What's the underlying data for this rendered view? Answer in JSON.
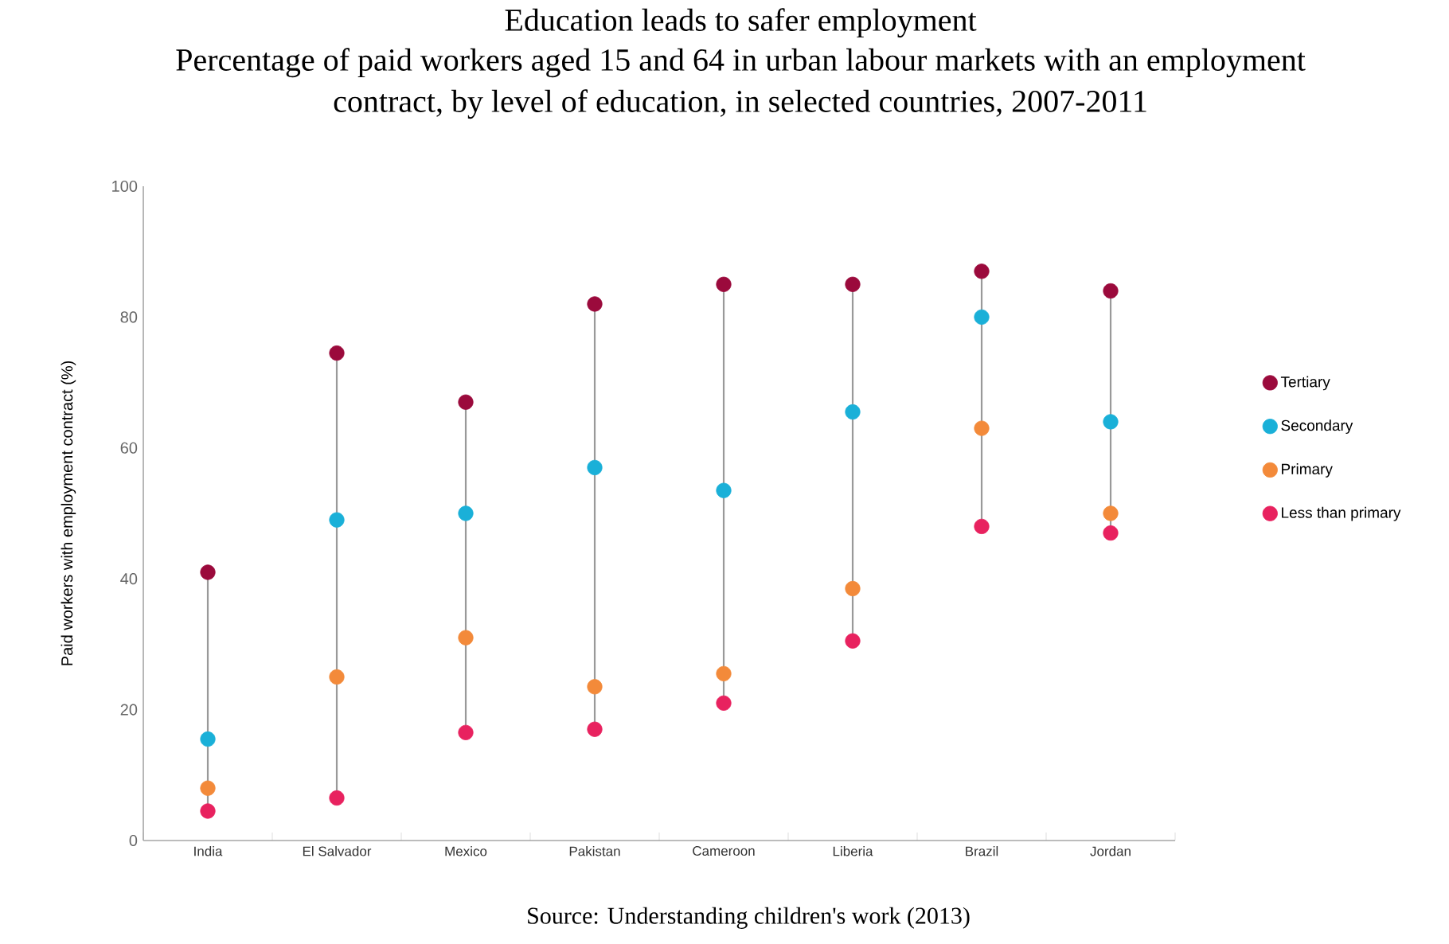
{
  "chart_data": {
    "type": "scatter",
    "title": "Education leads to safer employment",
    "subtitle": "Percentage of paid workers aged 15 and 64 in urban labour markets with an employment contract, by level of education, in selected countries, 2007-2011",
    "ylabel": "Paid workers with employment contract (%)",
    "annotations": [
      "Source: Understanding children's work (2013)"
    ],
    "categories": [
      "India",
      "El Salvador",
      "Mexico",
      "Pakistan",
      "Cameroon",
      "Liberia",
      "Brazil",
      "Jordan"
    ],
    "series": [
      {
        "name": "Tertiary",
        "color": "#9b0a3c",
        "values": [
          41,
          74.5,
          67,
          82,
          85,
          85,
          87,
          84
        ]
      },
      {
        "name": "Secondary",
        "color": "#1ab0d8",
        "values": [
          15.5,
          49,
          50,
          57,
          53.5,
          65.5,
          80,
          64
        ]
      },
      {
        "name": "Primary",
        "color": "#f38a3a",
        "values": [
          8,
          25,
          31,
          23.5,
          25.5,
          38.5,
          63,
          50
        ]
      },
      {
        "name": "Less than primary",
        "color": "#e8225f",
        "values": [
          4.5,
          6.5,
          16.5,
          17,
          21,
          30.5,
          48,
          47
        ]
      }
    ],
    "ylim": [
      0,
      100
    ],
    "yticks": [
      0,
      20,
      40,
      60,
      80,
      100
    ],
    "legend": "right",
    "marker": "circle"
  }
}
